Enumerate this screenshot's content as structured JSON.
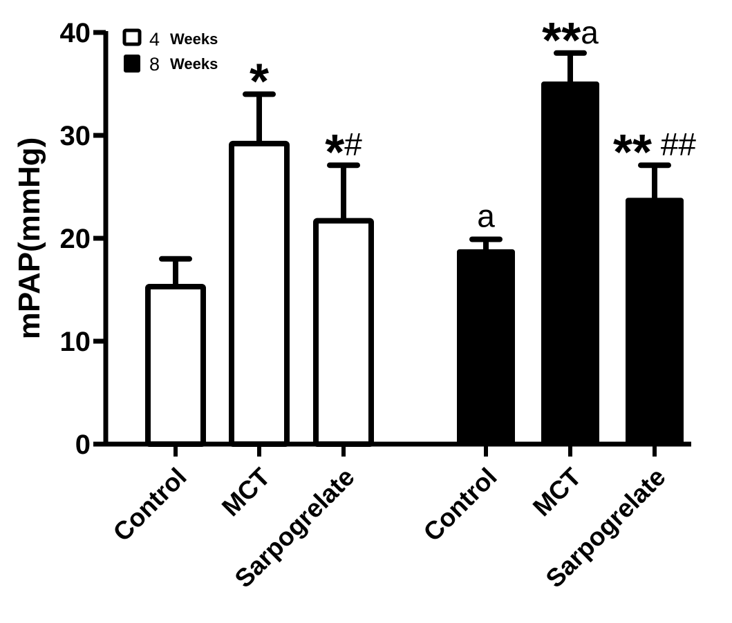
{
  "chart_data": {
    "type": "bar",
    "title": "",
    "xlabel": "",
    "ylabel": "mPAP(mmHg)",
    "ylim": [
      0,
      40
    ],
    "yticks": [
      0,
      10,
      20,
      30,
      40
    ],
    "grid": false,
    "legend_position": "top-left",
    "categories": [
      "Control",
      "MCT",
      "Sarpogrelate"
    ],
    "series": [
      {
        "name": "4 Weeks",
        "legend_num": "4",
        "legend_word": "Weeks",
        "fill": "#ffffff",
        "values": [
          15.3,
          29.2,
          21.7
        ],
        "error_upper": [
          18.0,
          34.0,
          27.1
        ],
        "annotations": [
          {
            "stars": "",
            "text": ""
          },
          {
            "stars": "*",
            "text": ""
          },
          {
            "stars": "*",
            "text": "#"
          }
        ]
      },
      {
        "name": "8 Weeks",
        "legend_num": "8",
        "legend_word": "Weeks",
        "fill": "#000000",
        "values": [
          18.8,
          35.1,
          23.8
        ],
        "error_upper": [
          19.9,
          38.0,
          27.1
        ],
        "annotations": [
          {
            "stars": "",
            "text": "a"
          },
          {
            "stars": "**",
            "text": "a"
          },
          {
            "stars": "**",
            "text": " ##"
          }
        ]
      }
    ]
  }
}
